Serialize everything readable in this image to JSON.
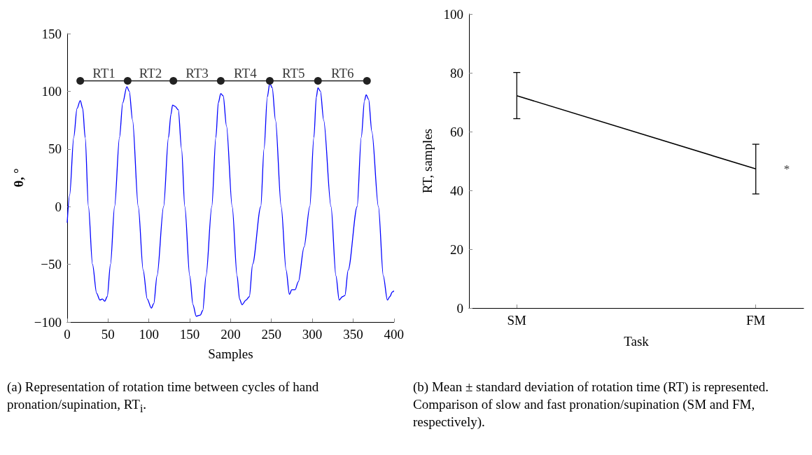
{
  "chart_data": [
    {
      "type": "line",
      "xlabel": "Samples",
      "ylabel": "θ, °",
      "xlim": [
        0,
        400
      ],
      "xticks": [
        0,
        50,
        100,
        150,
        200,
        250,
        300,
        350,
        400
      ],
      "ylim": [
        -100,
        150
      ],
      "yticks": [
        {
          "value": -100,
          "label": "−100"
        },
        {
          "value": -50,
          "label": "−50"
        },
        0,
        50,
        100,
        150
      ],
      "series": [
        {
          "color": "#0000ff",
          "marker": "none",
          "x": [
            0,
            3,
            8,
            12,
            16,
            19,
            22,
            26,
            31,
            36,
            40,
            43,
            46,
            49,
            53,
            58,
            64,
            68,
            73,
            76,
            80,
            87,
            93,
            98,
            103,
            106,
            110,
            118,
            124,
            127,
            129,
            132,
            136,
            140,
            144,
            150,
            154,
            158,
            163,
            166,
            170,
            177,
            182,
            185,
            188,
            191,
            195,
            202,
            208,
            211,
            214,
            219,
            223,
            227,
            237,
            241,
            245,
            248,
            251,
            255,
            262,
            268,
            272,
            275,
            279,
            283,
            290,
            297,
            302,
            305,
            307,
            310,
            314,
            323,
            329,
            333,
            337,
            340,
            344,
            355,
            360,
            364,
            366,
            369,
            373,
            381,
            387,
            392,
            395,
            398,
            400
          ],
          "values": [
            -14,
            10,
            60,
            85,
            92,
            85,
            60,
            0,
            -50,
            -75,
            -81,
            -80,
            -82,
            -78,
            -50,
            0,
            60,
            90,
            104,
            100,
            75,
            0,
            -55,
            -80,
            -88,
            -84,
            -60,
            0,
            60,
            80,
            88,
            87,
            84,
            50,
            0,
            -60,
            -85,
            -95,
            -94,
            -90,
            -60,
            0,
            60,
            90,
            98,
            96,
            70,
            0,
            -60,
            -80,
            -85,
            -81,
            -78,
            -50,
            0,
            50,
            95,
            107,
            103,
            75,
            0,
            -55,
            -76,
            -72,
            -72,
            -65,
            -35,
            0,
            60,
            95,
            103,
            100,
            75,
            0,
            -60,
            -81,
            -78,
            -77,
            -55,
            0,
            60,
            92,
            97,
            93,
            65,
            0,
            -60,
            -81,
            -78,
            -74,
            -73
          ]
        },
        {
          "color": "#222222",
          "marker": "circle",
          "x": [
            16,
            74,
            130,
            188,
            248,
            307,
            367
          ],
          "values": [
            109,
            109,
            109,
            109,
            109,
            109,
            109
          ]
        }
      ],
      "annotations": [
        {
          "text": "RT1",
          "x": 45,
          "y": 109
        },
        {
          "text": "RT2",
          "x": 102,
          "y": 109
        },
        {
          "text": "RT3",
          "x": 159,
          "y": 109
        },
        {
          "text": "RT4",
          "x": 218,
          "y": 109
        },
        {
          "text": "RT5",
          "x": 277,
          "y": 109
        },
        {
          "text": "RT6",
          "x": 337,
          "y": 109
        },
        "(a) Representation of rotation time between cycles of hand pronation/supination, RT$_{i}$."
      ]
    },
    {
      "type": "line",
      "xlabel": "Task",
      "ylabel": "RT, samples",
      "categories": [
        "SM",
        "FM"
      ],
      "ylim": [
        0,
        100
      ],
      "yticks": [
        0,
        20,
        40,
        60,
        80,
        100
      ],
      "series": [
        {
          "color": "#000000",
          "marker": "none",
          "values": [
            72.2,
            47.3
          ],
          "errors": [
            [
              64.4,
              80.1
            ],
            [
              38.8,
              55.7
            ]
          ]
        }
      ],
      "annotations": [
        {
          "text": "*",
          "x": "FM",
          "y": 47.3
        },
        "(b) Mean ± standard deviation of rotation time (RT) is represented. Comparison of slow and fast pronation/supination (SM and FM, respectively)."
      ]
    }
  ]
}
